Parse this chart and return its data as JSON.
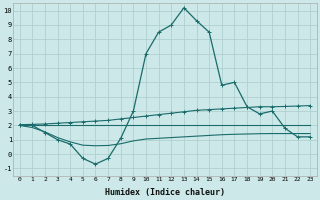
{
  "xlabel": "Humidex (Indice chaleur)",
  "bg_color": "#cce8e8",
  "grid_color": "#b0d0d0",
  "line_color": "#1a6b6b",
  "xlim": [
    -0.5,
    23.5
  ],
  "ylim": [
    -1.5,
    10.5
  ],
  "xticks": [
    0,
    1,
    2,
    3,
    4,
    5,
    6,
    7,
    8,
    9,
    10,
    11,
    12,
    13,
    14,
    15,
    16,
    17,
    18,
    19,
    20,
    21,
    22,
    23
  ],
  "yticks": [
    -1,
    0,
    1,
    2,
    3,
    4,
    5,
    6,
    7,
    8,
    9,
    10
  ],
  "main_line_x": [
    0,
    1,
    2,
    3,
    4,
    5,
    6,
    7,
    8,
    9,
    10,
    11,
    12,
    13,
    14,
    15,
    16,
    17,
    18,
    19,
    20,
    21,
    22,
    23
  ],
  "main_line_y": [
    2.0,
    2.0,
    1.5,
    1.0,
    0.7,
    -0.3,
    -0.7,
    -0.3,
    1.1,
    3.0,
    7.0,
    8.5,
    9.0,
    10.2,
    9.3,
    8.5,
    4.8,
    5.0,
    3.3,
    2.8,
    3.0,
    1.8,
    1.2,
    1.2
  ],
  "upper_line_x": [
    0,
    1,
    2,
    3,
    4,
    5,
    6,
    7,
    8,
    9,
    10,
    11,
    12,
    13,
    14,
    15,
    16,
    17,
    18,
    19,
    20,
    21,
    22,
    23
  ],
  "upper_line_y": [
    2.05,
    2.07,
    2.1,
    2.15,
    2.2,
    2.25,
    2.3,
    2.35,
    2.45,
    2.55,
    2.65,
    2.75,
    2.85,
    2.95,
    3.05,
    3.1,
    3.15,
    3.2,
    3.25,
    3.3,
    3.3,
    3.32,
    3.35,
    3.38
  ],
  "mid_line_x": [
    0,
    1,
    2,
    3,
    4,
    5,
    6,
    7,
    8,
    9,
    10,
    11,
    12,
    13,
    14,
    15,
    16,
    17,
    18,
    19,
    20,
    21,
    22,
    23
  ],
  "mid_line_y": [
    2.0,
    2.0,
    2.0,
    2.0,
    2.0,
    2.0,
    2.0,
    2.0,
    2.0,
    2.0,
    2.0,
    2.0,
    2.0,
    2.0,
    2.0,
    2.0,
    2.0,
    2.0,
    2.0,
    2.0,
    2.0,
    2.0,
    2.0,
    2.0
  ],
  "lower_line_x": [
    0,
    1,
    2,
    3,
    4,
    5,
    6,
    7,
    8,
    9,
    10,
    11,
    12,
    13,
    14,
    15,
    16,
    17,
    18,
    19,
    20,
    21,
    22,
    23
  ],
  "lower_line_y": [
    2.0,
    1.85,
    1.55,
    1.15,
    0.85,
    0.62,
    0.58,
    0.6,
    0.72,
    0.92,
    1.05,
    1.1,
    1.15,
    1.2,
    1.25,
    1.3,
    1.35,
    1.38,
    1.4,
    1.42,
    1.43,
    1.43,
    1.43,
    1.43
  ]
}
